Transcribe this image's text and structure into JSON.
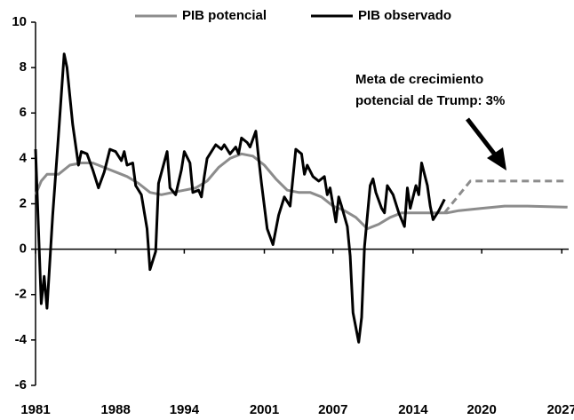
{
  "chart_data": {
    "type": "line",
    "xlim": [
      1981,
      2027.6
    ],
    "xticks": [
      1981,
      1988,
      1994,
      2001,
      2007,
      2014,
      2020,
      2027
    ],
    "ylim": [
      -6,
      10
    ],
    "yticks": [
      -6,
      -4,
      -2,
      0,
      2,
      4,
      6,
      8,
      10
    ],
    "legend": "top",
    "series": [
      {
        "name": "PIB potencial",
        "color": "#8c8c8c",
        "x": [
          1981,
          1981.5,
          1982,
          1983,
          1984,
          1985,
          1986,
          1987,
          1988,
          1989,
          1990,
          1991,
          1992,
          1993,
          1994,
          1995,
          1996,
          1997,
          1998,
          1999,
          2000,
          2001,
          2002,
          2003,
          2004,
          2005,
          2006,
          2007,
          2008,
          2009,
          2010,
          2011,
          2012,
          2013,
          2014,
          2015,
          2016,
          2017,
          2018,
          2020,
          2022,
          2024,
          2027.5
        ],
        "values": [
          2.4,
          3.0,
          3.3,
          3.3,
          3.7,
          3.8,
          3.8,
          3.6,
          3.4,
          3.2,
          2.9,
          2.5,
          2.4,
          2.5,
          2.6,
          2.7,
          3.0,
          3.6,
          4.0,
          4.2,
          4.1,
          3.7,
          3.1,
          2.6,
          2.5,
          2.5,
          2.3,
          1.9,
          1.7,
          1.4,
          0.9,
          1.1,
          1.4,
          1.6,
          1.6,
          1.6,
          1.6,
          1.6,
          1.7,
          1.8,
          1.9,
          1.9,
          1.85
        ]
      },
      {
        "name": "PIB observado",
        "color": "#000000",
        "x": [
          1981,
          1981.5,
          1981.75,
          1982,
          1982.5,
          1983,
          1983.5,
          1983.75,
          1984.25,
          1984.75,
          1985,
          1985.5,
          1986,
          1986.5,
          1987,
          1987.5,
          1988,
          1988.5,
          1988.75,
          1989,
          1989.5,
          1989.75,
          1990.25,
          1990.75,
          1991,
          1991.5,
          1991.75,
          1992.5,
          1992.75,
          1993.25,
          1993.75,
          1994,
          1994.5,
          1994.75,
          1995.25,
          1995.5,
          1995.75,
          1996,
          1996.75,
          1997.25,
          1997.5,
          1998,
          1998.5,
          1998.75,
          1999,
          1999.5,
          1999.75,
          2000.25,
          2000.5,
          2000.75,
          2001.25,
          2001.75,
          2002.25,
          2002.5,
          2002.75,
          2003.25,
          2003.75,
          2004.25,
          2004.5,
          2004.75,
          2005.25,
          2005.75,
          2006.25,
          2006.5,
          2006.75,
          2007.25,
          2007.5,
          2007.75,
          2008.25,
          2008.5,
          2008.75,
          2009.25,
          2009.5,
          2009.75,
          2010.25,
          2010.5,
          2010.75,
          2011.25,
          2011.5,
          2011.75,
          2012.25,
          2012.75,
          2013.25,
          2013.5,
          2013.75,
          2014.25,
          2014.5,
          2014.75,
          2015.25,
          2015.5,
          2015.75,
          2016.25,
          2016.75
        ],
        "values": [
          4.4,
          -2.4,
          -1.2,
          -2.6,
          1.5,
          5.0,
          8.6,
          8.0,
          5.5,
          3.7,
          4.3,
          4.2,
          3.5,
          2.7,
          3.4,
          4.4,
          4.3,
          3.9,
          4.3,
          3.7,
          3.8,
          2.8,
          2.4,
          0.9,
          -0.9,
          -0.1,
          2.9,
          4.3,
          2.7,
          2.4,
          3.5,
          4.3,
          3.8,
          2.5,
          2.6,
          2.3,
          3.2,
          4.0,
          4.6,
          4.4,
          4.6,
          4.2,
          4.5,
          4.2,
          4.9,
          4.7,
          4.5,
          5.2,
          4.0,
          2.9,
          0.9,
          0.2,
          1.5,
          1.9,
          2.3,
          1.9,
          4.4,
          4.2,
          3.3,
          3.7,
          3.2,
          3.0,
          3.2,
          2.4,
          2.7,
          1.2,
          2.3,
          1.9,
          1.0,
          -0.3,
          -2.8,
          -4.1,
          -3.0,
          0.1,
          2.8,
          3.1,
          2.5,
          1.8,
          1.6,
          2.8,
          2.4,
          1.6,
          1.0,
          2.7,
          1.8,
          2.8,
          2.4,
          3.8,
          2.8,
          1.9,
          1.3,
          1.7,
          2.2
        ]
      }
    ],
    "projection": {
      "color": "#8c8c8c",
      "dashed": true,
      "x": [
        2016.75,
        2019,
        2027.5
      ],
      "values": [
        1.6,
        3.0,
        3.0
      ]
    },
    "annotation": [
      "Meta de crecimiento",
      "potencial de Trump: 3%"
    ]
  }
}
